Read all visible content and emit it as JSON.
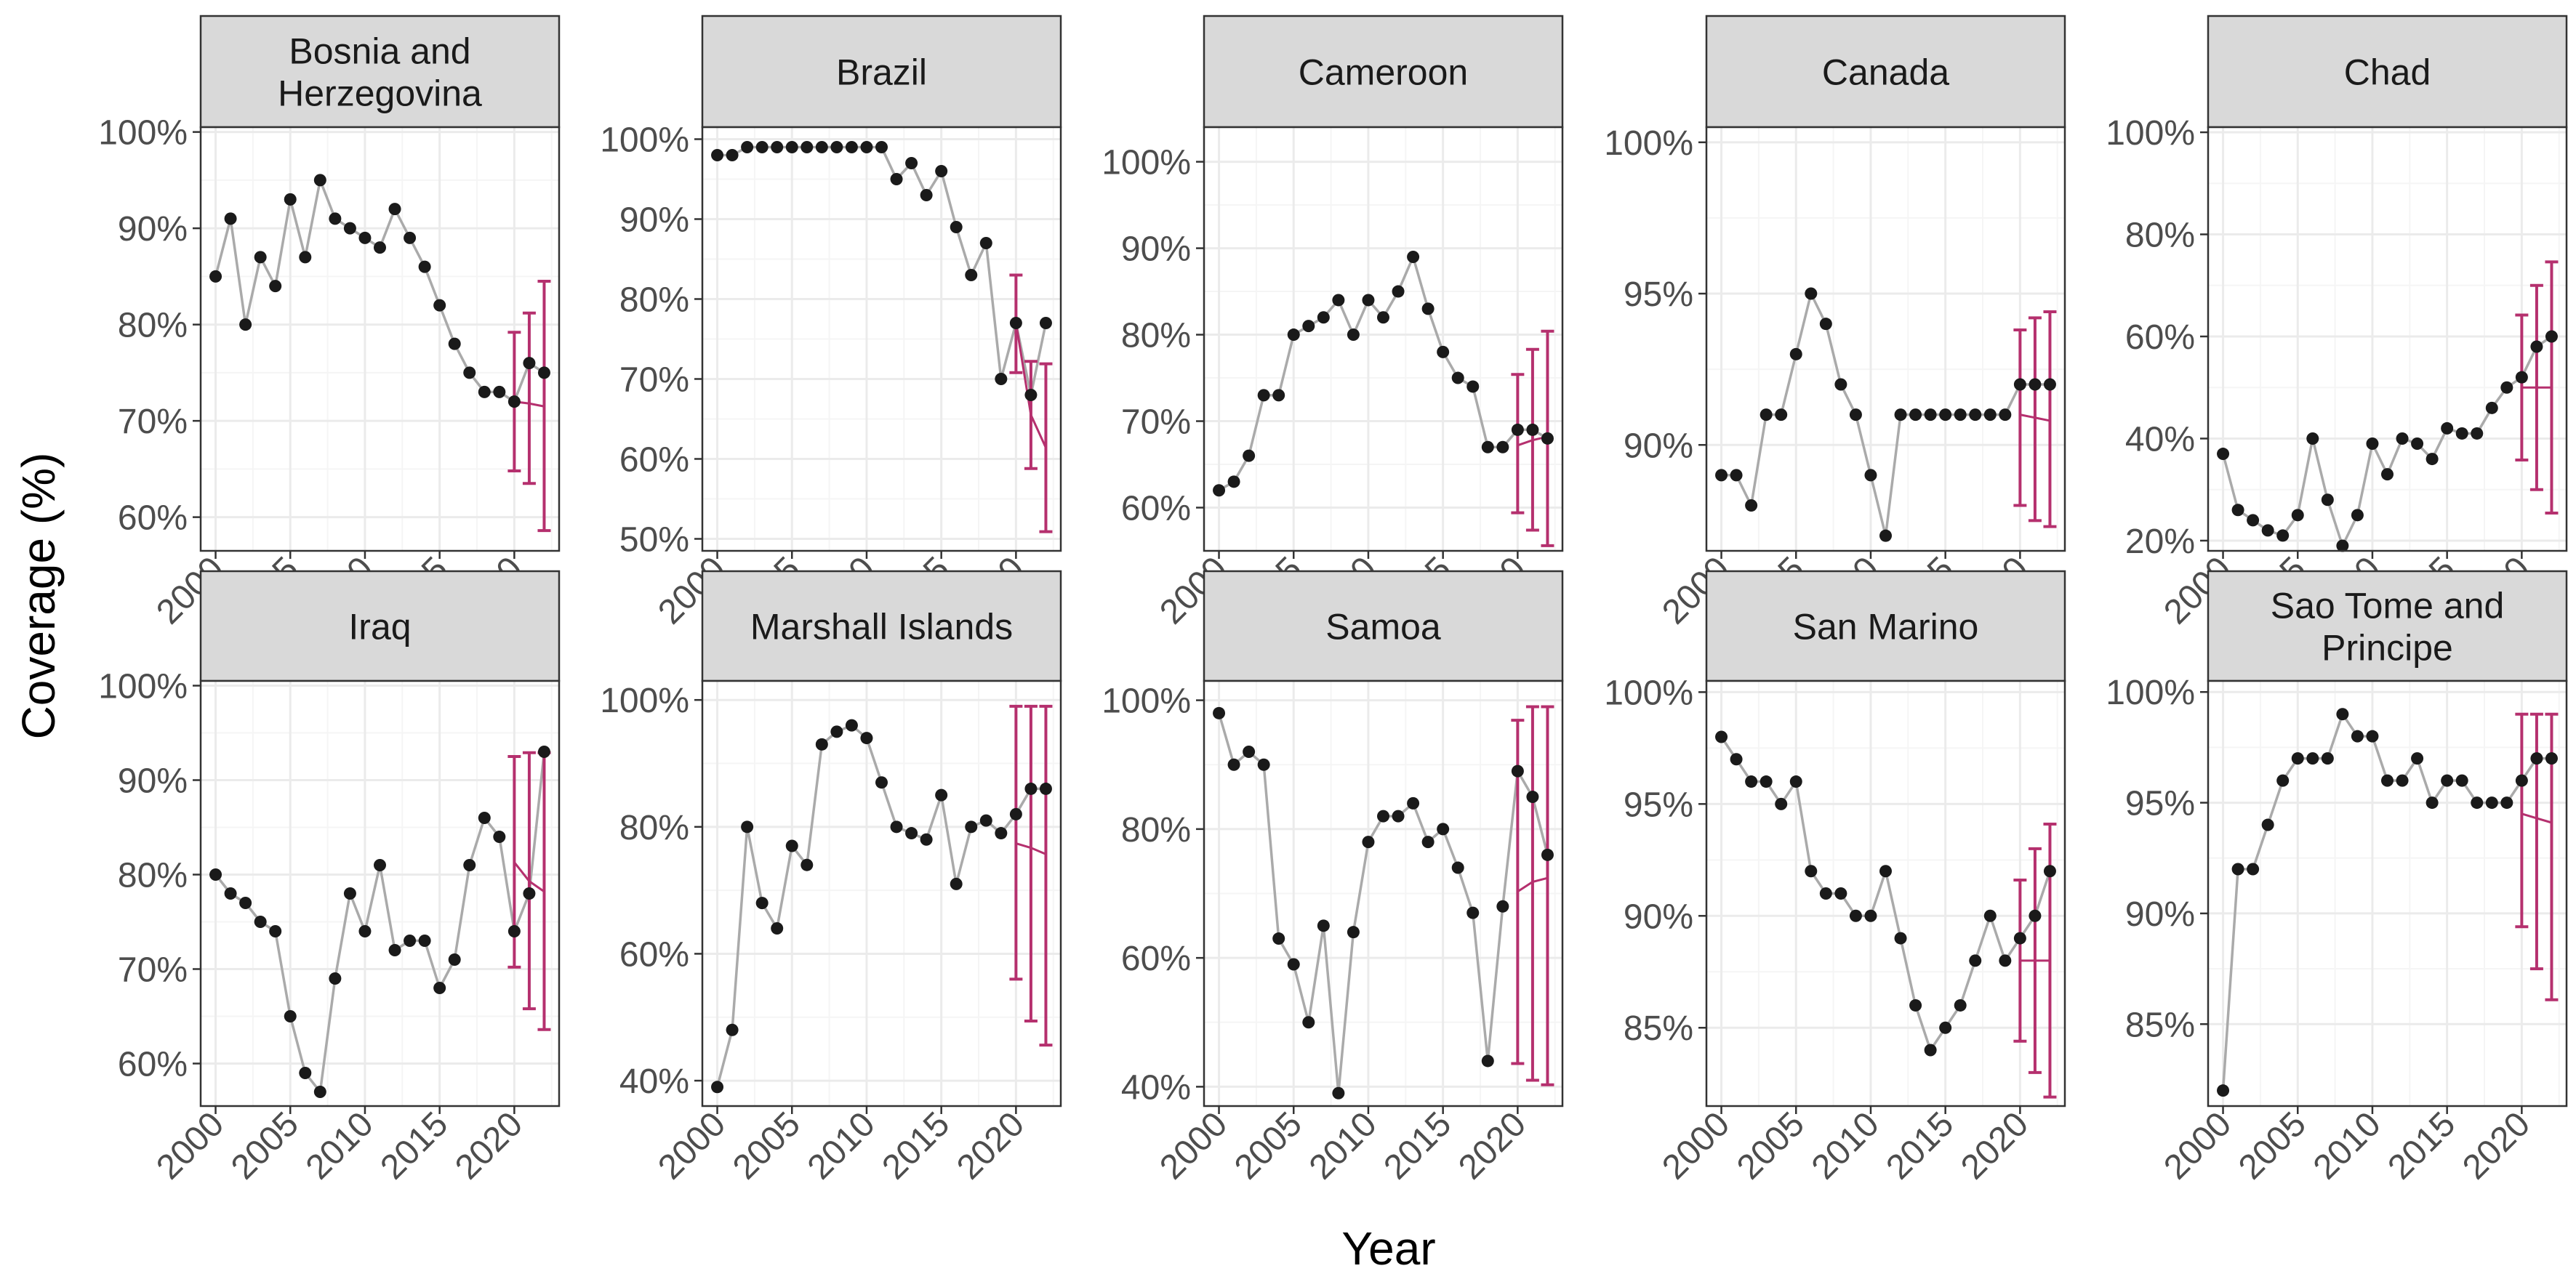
{
  "chart_data": {
    "type": "line",
    "xlabel": "Year",
    "ylabel": "Coverage (%)",
    "grid": true,
    "x_tick_labels": [
      "2000",
      "2005",
      "2010",
      "2015",
      "2020"
    ],
    "colors": {
      "line": "#aaaaaa",
      "point": "#1a1a1a",
      "projection": "#b5306e",
      "strip_bg": "#d9d9d9",
      "strip_border": "#333333",
      "panel_border": "#333333",
      "grid_major": "#ebebeb",
      "grid_minor": "#f5f5f5"
    },
    "panels": [
      {
        "title": [
          "Bosnia and",
          "Herzegovina"
        ],
        "ylim": [
          56.5,
          100.5
        ],
        "y_ticks": [
          60,
          70,
          80,
          90,
          100
        ],
        "y_tick_labels": [
          "60%",
          "70%",
          "80%",
          "90%",
          "100%"
        ],
        "years": [
          2000,
          2001,
          2002,
          2003,
          2004,
          2005,
          2006,
          2007,
          2008,
          2009,
          2010,
          2011,
          2012,
          2013,
          2014,
          2015,
          2016,
          2017,
          2018,
          2019,
          2020,
          2021,
          2022
        ],
        "values": [
          85,
          91,
          80,
          87,
          84,
          93,
          87,
          95,
          91,
          90,
          89,
          88,
          92,
          89,
          86,
          82,
          78,
          75,
          73,
          73,
          72,
          76,
          75
        ],
        "projections": [
          {
            "year": 2020,
            "low": 64.8,
            "mid": 72,
            "high": 79.2
          },
          {
            "year": 2021,
            "low": 63.5,
            "mid": 71.8,
            "high": 81.2
          },
          {
            "year": 2022,
            "low": 58.6,
            "mid": 71.5,
            "high": 84.5
          }
        ]
      },
      {
        "title": [
          "Brazil"
        ],
        "ylim": [
          48.5,
          101.5
        ],
        "y_ticks": [
          50,
          60,
          70,
          80,
          90,
          100
        ],
        "y_tick_labels": [
          "50%",
          "60%",
          "70%",
          "80%",
          "90%",
          "100%"
        ],
        "years": [
          2000,
          2001,
          2002,
          2003,
          2004,
          2005,
          2006,
          2007,
          2008,
          2009,
          2010,
          2011,
          2012,
          2013,
          2014,
          2015,
          2016,
          2017,
          2018,
          2019,
          2020,
          2021,
          2022
        ],
        "values": [
          98,
          98,
          99,
          99,
          99,
          99,
          99,
          99,
          99,
          99,
          99,
          99,
          95,
          97,
          93,
          96,
          89,
          83,
          87,
          70,
          77,
          68,
          77
        ],
        "projections": [
          {
            "year": 2020,
            "low": 70.8,
            "mid": 77,
            "high": 83
          },
          {
            "year": 2021,
            "low": 58.8,
            "mid": 65.5,
            "high": 72.2
          },
          {
            "year": 2022,
            "low": 50.9,
            "mid": 61.4,
            "high": 71.9
          }
        ]
      },
      {
        "title": [
          "Cameroon"
        ],
        "ylim": [
          55,
          104
        ],
        "y_ticks": [
          60,
          70,
          80,
          90,
          100
        ],
        "y_tick_labels": [
          "60%",
          "70%",
          "80%",
          "90%",
          "100%"
        ],
        "years": [
          2000,
          2001,
          2002,
          2003,
          2004,
          2005,
          2006,
          2007,
          2008,
          2009,
          2010,
          2011,
          2012,
          2013,
          2014,
          2015,
          2016,
          2017,
          2018,
          2019,
          2020,
          2021,
          2022
        ],
        "values": [
          62,
          63,
          66,
          73,
          73,
          80,
          81,
          82,
          84,
          80,
          84,
          82,
          85,
          89,
          83,
          78,
          75,
          74,
          67,
          67,
          69,
          69,
          68
        ],
        "projections": [
          {
            "year": 2020,
            "low": 59.4,
            "mid": 67.2,
            "high": 75.4
          },
          {
            "year": 2021,
            "low": 57.4,
            "mid": 67.8,
            "high": 78.3
          },
          {
            "year": 2022,
            "low": 55.6,
            "mid": 68.2,
            "high": 80.4
          }
        ]
      },
      {
        "title": [
          "Canada"
        ],
        "ylim": [
          86.5,
          100.5
        ],
        "y_ticks": [
          90,
          95,
          100
        ],
        "y_tick_labels": [
          "90%",
          "95%",
          "100%"
        ],
        "years": [
          2000,
          2001,
          2002,
          2003,
          2004,
          2005,
          2006,
          2007,
          2008,
          2009,
          2010,
          2011,
          2012,
          2013,
          2014,
          2015,
          2016,
          2017,
          2018,
          2019,
          2020,
          2021,
          2022
        ],
        "values": [
          89,
          89,
          88,
          91,
          91,
          93,
          95,
          94,
          92,
          91,
          89,
          87,
          91,
          91,
          91,
          91,
          91,
          91,
          91,
          91,
          92,
          92,
          92
        ],
        "projections": [
          {
            "year": 2020,
            "low": 88,
            "mid": 91,
            "high": 93.8
          },
          {
            "year": 2021,
            "low": 87.5,
            "mid": 90.9,
            "high": 94.2
          },
          {
            "year": 2022,
            "low": 87.3,
            "mid": 90.8,
            "high": 94.4
          }
        ]
      },
      {
        "title": [
          "Chad"
        ],
        "ylim": [
          18,
          101
        ],
        "y_ticks": [
          20,
          40,
          60,
          80,
          100
        ],
        "y_tick_labels": [
          "20%",
          "40%",
          "60%",
          "80%",
          "100%"
        ],
        "years": [
          2000,
          2001,
          2002,
          2003,
          2004,
          2005,
          2006,
          2007,
          2008,
          2009,
          2010,
          2011,
          2012,
          2013,
          2014,
          2015,
          2016,
          2017,
          2018,
          2019,
          2020,
          2021,
          2022
        ],
        "values": [
          37,
          26,
          24,
          22,
          21,
          25,
          40,
          28,
          19,
          25,
          39,
          33,
          40,
          39,
          36,
          42,
          41,
          41,
          46,
          50,
          52,
          58,
          60
        ],
        "projections": [
          {
            "year": 2020,
            "low": 35.8,
            "mid": 50,
            "high": 64.2
          },
          {
            "year": 2021,
            "low": 30,
            "mid": 50,
            "high": 70
          },
          {
            "year": 2022,
            "low": 25.4,
            "mid": 50,
            "high": 74.6
          }
        ]
      },
      {
        "title": [
          "Iraq"
        ],
        "ylim": [
          55.5,
          100.5
        ],
        "y_ticks": [
          60,
          70,
          80,
          90,
          100
        ],
        "y_tick_labels": [
          "60%",
          "70%",
          "80%",
          "90%",
          "100%"
        ],
        "years": [
          2000,
          2001,
          2002,
          2003,
          2004,
          2005,
          2006,
          2007,
          2008,
          2009,
          2010,
          2011,
          2012,
          2013,
          2014,
          2015,
          2016,
          2017,
          2018,
          2019,
          2020,
          2021,
          2022
        ],
        "values": [
          80,
          78,
          77,
          75,
          74,
          65,
          59,
          57,
          69,
          78,
          74,
          81,
          72,
          73,
          73,
          68,
          71,
          81,
          86,
          84,
          74,
          78,
          93
        ],
        "projections": [
          {
            "year": 2020,
            "low": 70.2,
            "mid": 81.3,
            "high": 92.5
          },
          {
            "year": 2021,
            "low": 65.8,
            "mid": 79.3,
            "high": 92.9
          },
          {
            "year": 2022,
            "low": 63.6,
            "mid": 78.2,
            "high": 92.9
          }
        ]
      },
      {
        "title": [
          "Marshall Islands"
        ],
        "ylim": [
          36,
          103
        ],
        "y_ticks": [
          40,
          60,
          80,
          100
        ],
        "y_tick_labels": [
          "40%",
          "60%",
          "80%",
          "100%"
        ],
        "years": [
          2000,
          2001,
          2002,
          2003,
          2004,
          2005,
          2006,
          2007,
          2008,
          2009,
          2010,
          2011,
          2012,
          2013,
          2014,
          2015,
          2016,
          2017,
          2018,
          2019,
          2020,
          2021,
          2022
        ],
        "values": [
          39,
          48,
          80,
          68,
          64,
          77,
          74,
          93,
          95,
          96,
          94,
          87,
          80,
          79,
          78,
          85,
          71,
          80,
          81,
          79,
          82,
          86,
          86
        ],
        "projections": [
          {
            "year": 2020,
            "low": 56,
            "mid": 77.4,
            "high": 99
          },
          {
            "year": 2021,
            "low": 49.4,
            "mid": 76.7,
            "high": 99
          },
          {
            "year": 2022,
            "low": 45.6,
            "mid": 75.7,
            "high": 99
          }
        ]
      },
      {
        "title": [
          "Samoa"
        ],
        "ylim": [
          37,
          103
        ],
        "y_ticks": [
          40,
          60,
          80,
          100
        ],
        "y_tick_labels": [
          "40%",
          "60%",
          "80%",
          "100%"
        ],
        "years": [
          2000,
          2001,
          2002,
          2003,
          2004,
          2005,
          2006,
          2007,
          2008,
          2009,
          2010,
          2011,
          2012,
          2013,
          2014,
          2015,
          2016,
          2017,
          2018,
          2019,
          2020,
          2021,
          2022
        ],
        "values": [
          98,
          90,
          92,
          90,
          63,
          59,
          50,
          65,
          39,
          64,
          78,
          82,
          82,
          84,
          78,
          80,
          74,
          67,
          44,
          68,
          89,
          85,
          76
        ],
        "projections": [
          {
            "year": 2020,
            "low": 43.6,
            "mid": 70.3,
            "high": 96.9
          },
          {
            "year": 2021,
            "low": 41,
            "mid": 71.8,
            "high": 99
          },
          {
            "year": 2022,
            "low": 40.3,
            "mid": 72.4,
            "high": 99
          }
        ]
      },
      {
        "title": [
          "San Marino"
        ],
        "ylim": [
          81.5,
          100.5
        ],
        "y_ticks": [
          85,
          90,
          95,
          100
        ],
        "y_tick_labels": [
          "85%",
          "90%",
          "95%",
          "100%"
        ],
        "years": [
          2000,
          2001,
          2002,
          2003,
          2004,
          2005,
          2006,
          2007,
          2008,
          2009,
          2010,
          2011,
          2012,
          2013,
          2014,
          2015,
          2016,
          2017,
          2018,
          2019,
          2020,
          2021,
          2022
        ],
        "values": [
          98,
          97,
          96,
          96,
          95,
          96,
          92,
          91,
          91,
          90,
          90,
          92,
          89,
          86,
          84,
          85,
          86,
          88,
          90,
          88,
          89,
          90,
          92
        ],
        "projections": [
          {
            "year": 2020,
            "low": 84.4,
            "mid": 88,
            "high": 91.6
          },
          {
            "year": 2021,
            "low": 83,
            "mid": 88,
            "high": 93
          },
          {
            "year": 2022,
            "low": 81.9,
            "mid": 88,
            "high": 94.1
          }
        ]
      },
      {
        "title": [
          "Sao Tome and",
          "Principe"
        ],
        "ylim": [
          81.3,
          100.5
        ],
        "y_ticks": [
          85,
          90,
          95,
          100
        ],
        "y_tick_labels": [
          "85%",
          "90%",
          "95%",
          "100%"
        ],
        "years": [
          2000,
          2001,
          2002,
          2003,
          2004,
          2005,
          2006,
          2007,
          2008,
          2009,
          2010,
          2011,
          2012,
          2013,
          2014,
          2015,
          2016,
          2017,
          2018,
          2019,
          2020,
          2021,
          2022
        ],
        "values": [
          82,
          92,
          92,
          94,
          96,
          97,
          97,
          97,
          99,
          98,
          98,
          96,
          96,
          97,
          95,
          96,
          96,
          95,
          95,
          95,
          96,
          97,
          97
        ],
        "projections": [
          {
            "year": 2020,
            "low": 89.4,
            "mid": 94.5,
            "high": 99
          },
          {
            "year": 2021,
            "low": 87.5,
            "mid": 94.3,
            "high": 99
          },
          {
            "year": 2022,
            "low": 86.1,
            "mid": 94.1,
            "high": 99
          }
        ]
      }
    ]
  }
}
